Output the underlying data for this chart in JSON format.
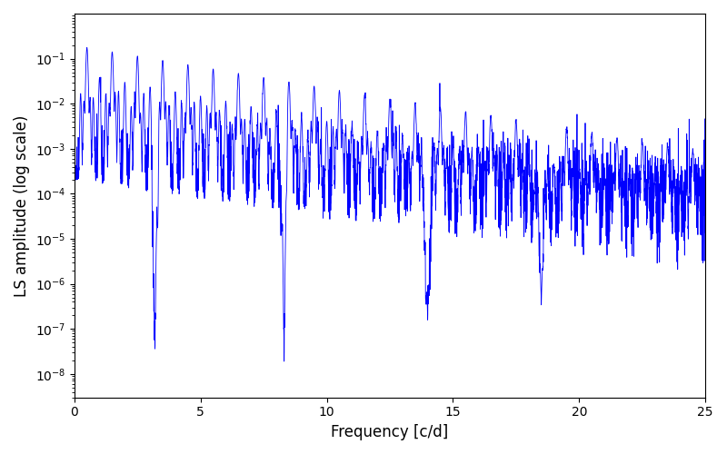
{
  "title": "",
  "xlabel": "Frequency [c/d]",
  "ylabel": "LS amplitude (log scale)",
  "xlim": [
    0,
    25
  ],
  "ylim_log": [
    3e-09,
    1.0
  ],
  "line_color": "#0000FF",
  "line_width": 0.6,
  "freq_max": 25.0,
  "n_points": 5000,
  "background_color": "#ffffff",
  "figsize": [
    8.0,
    5.0
  ],
  "dpi": 100,
  "yscale": "log",
  "yticks": [
    1e-08,
    1e-07,
    1e-06,
    1e-05,
    0.0001,
    0.001,
    0.01,
    0.1
  ],
  "xticks": [
    0,
    5,
    10,
    15,
    20,
    25
  ]
}
